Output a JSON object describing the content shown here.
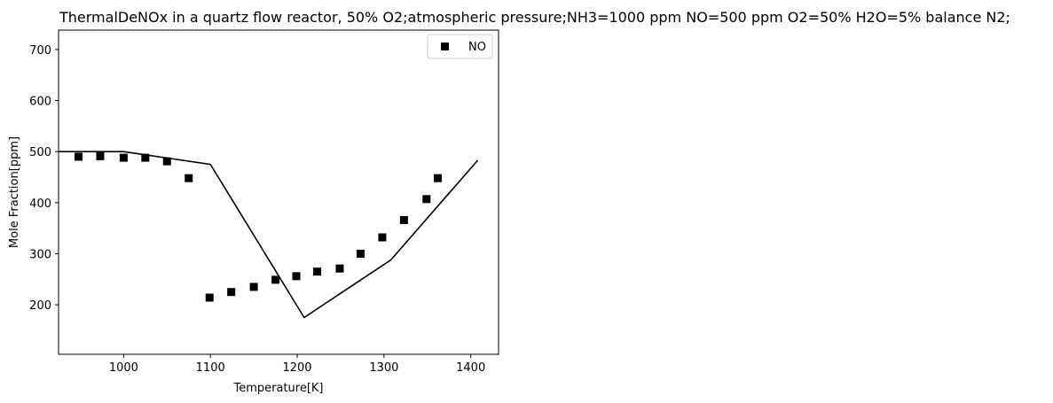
{
  "chart_data": {
    "type": "scatter",
    "title": "ThermalDeNOx in a quartz flow reactor, 50% O2;atmospheric pressure;NH3=1000 ppm NO=500 ppm O2=50% H2O=5% balance N2;",
    "xlabel": "Temperature[K]",
    "ylabel": "Mole Fraction[ppm]",
    "xlim": [
      925,
      1432
    ],
    "ylim": [
      103,
      738
    ],
    "xticks": [
      1000,
      1100,
      1200,
      1300,
      1400
    ],
    "yticks": [
      200,
      300,
      400,
      500,
      600,
      700
    ],
    "grid": false,
    "legend_position": "top-right",
    "series": [
      {
        "name": "NO",
        "marker": "square",
        "color": "#000000",
        "x": [
          948,
          973,
          1000,
          1025,
          1050,
          1075,
          1099,
          1124,
          1150,
          1175,
          1199,
          1223,
          1249,
          1273,
          1298,
          1323,
          1349,
          1362
        ],
        "y": [
          490,
          491,
          488,
          488,
          481,
          448,
          214,
          225,
          235,
          249,
          256,
          265,
          271,
          300,
          332,
          366,
          407,
          448
        ]
      },
      {
        "marker": "none",
        "color": "#000000",
        "x": [
          925,
          975,
          1000,
          1100,
          1208,
          1308,
          1408
        ],
        "y": [
          500,
          500,
          500,
          475,
          175,
          288,
          483
        ]
      }
    ]
  }
}
